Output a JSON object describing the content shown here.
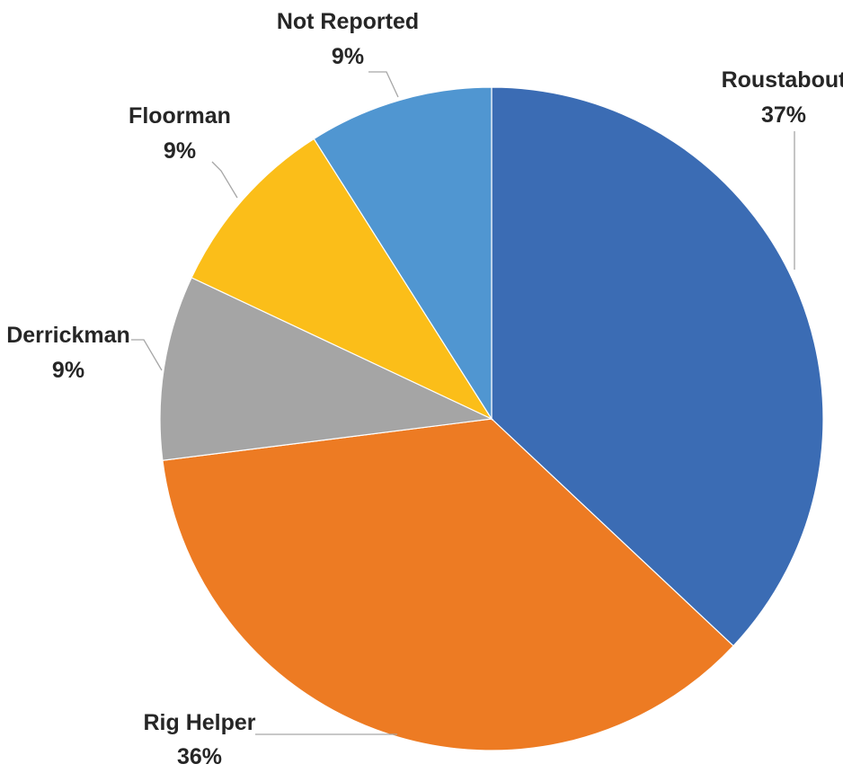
{
  "chart_data": {
    "type": "pie",
    "title": "",
    "start_angle_deg": 0,
    "direction": "clockwise",
    "slices": [
      {
        "label": "Roustabout",
        "value": 37,
        "display": "37%",
        "color": "#3B6CB4"
      },
      {
        "label": "Rig Helper",
        "value": 36,
        "display": "36%",
        "color": "#ED7B23"
      },
      {
        "label": "Derrickman",
        "value": 9,
        "display": "9%",
        "color": "#A5A5A5"
      },
      {
        "label": "Floorman",
        "value": 9,
        "display": "9%",
        "color": "#FBBE19"
      },
      {
        "label": "Not Reported",
        "value": 9,
        "display": "9%",
        "color": "#5096D1"
      }
    ],
    "legend": "none",
    "data_labels": "outside with leader lines"
  }
}
